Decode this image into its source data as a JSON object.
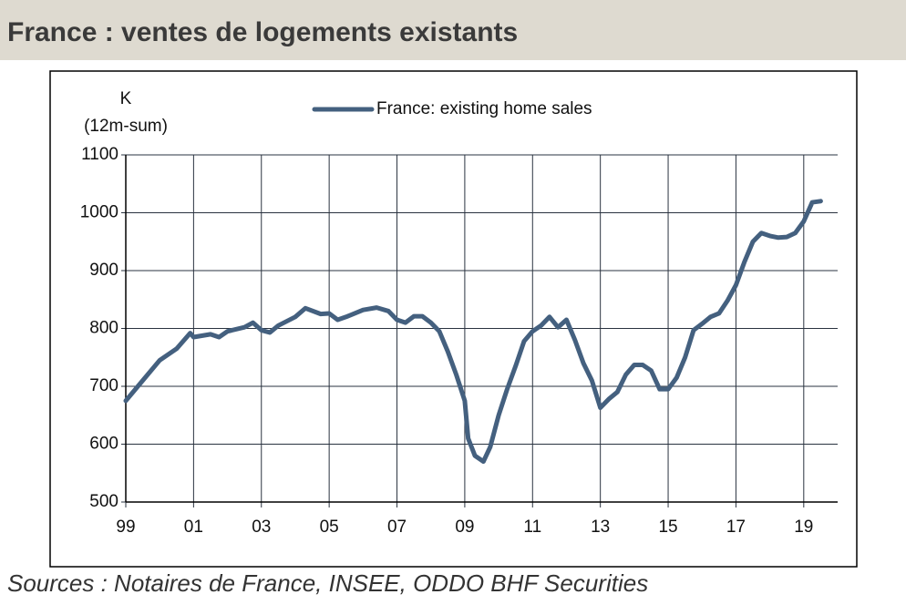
{
  "chart_data": {
    "type": "line",
    "title": "France : ventes de logements existants",
    "y_unit": "K",
    "ylabel": "(12m-sum)",
    "source": "Sources : Notaires de France, INSEE, ODDO BHF Securities",
    "x": [
      1999.0,
      1999.5,
      2000.0,
      2000.5,
      2000.9,
      2001.0,
      2001.5,
      2001.75,
      2002.0,
      2002.5,
      2002.75,
      2003.0,
      2003.25,
      2003.5,
      2004.0,
      2004.3,
      2004.75,
      2005.0,
      2005.25,
      2005.5,
      2006.0,
      2006.4,
      2006.75,
      2007.0,
      2007.25,
      2007.5,
      2007.75,
      2008.0,
      2008.25,
      2008.5,
      2008.75,
      2009.0,
      2009.1,
      2009.3,
      2009.55,
      2009.75,
      2010.0,
      2010.25,
      2010.5,
      2010.75,
      2011.0,
      2011.25,
      2011.5,
      2011.75,
      2012.0,
      2012.25,
      2012.5,
      2012.75,
      2013.0,
      2013.25,
      2013.5,
      2013.75,
      2014.0,
      2014.25,
      2014.5,
      2014.75,
      2015.0,
      2015.25,
      2015.5,
      2015.75,
      2016.0,
      2016.25,
      2016.5,
      2016.75,
      2017.0,
      2017.25,
      2017.5,
      2017.75,
      2018.0,
      2018.25,
      2018.5,
      2018.75,
      2019.0,
      2019.25,
      2019.5
    ],
    "series": [
      {
        "name": "France: existing home sales",
        "color": "#44607f",
        "values": [
          675,
          710,
          745,
          765,
          792,
          785,
          790,
          785,
          795,
          802,
          810,
          797,
          793,
          805,
          820,
          835,
          825,
          826,
          815,
          820,
          832,
          836,
          830,
          815,
          810,
          821,
          821,
          810,
          795,
          760,
          720,
          675,
          610,
          580,
          570,
          595,
          650,
          695,
          735,
          778,
          795,
          805,
          820,
          802,
          815,
          780,
          740,
          710,
          663,
          678,
          690,
          720,
          737,
          737,
          727,
          695,
          695,
          715,
          750,
          797,
          808,
          820,
          826,
          848,
          875,
          915,
          950,
          965,
          960,
          957,
          958,
          965,
          985,
          1018,
          1020
        ]
      }
    ],
    "xlim": [
      1999,
      2020
    ],
    "xticks": [
      {
        "value": 1999,
        "label": "99"
      },
      {
        "value": 2001,
        "label": "01"
      },
      {
        "value": 2003,
        "label": "03"
      },
      {
        "value": 2005,
        "label": "05"
      },
      {
        "value": 2007,
        "label": "07"
      },
      {
        "value": 2009,
        "label": "09"
      },
      {
        "value": 2011,
        "label": "11"
      },
      {
        "value": 2013,
        "label": "13"
      },
      {
        "value": 2015,
        "label": "15"
      },
      {
        "value": 2017,
        "label": "17"
      },
      {
        "value": 2019,
        "label": "19"
      }
    ],
    "ylim": [
      500,
      1100
    ],
    "yticks": [
      500,
      600,
      700,
      800,
      900,
      1000,
      1100
    ],
    "grid": true,
    "legend": "top"
  }
}
